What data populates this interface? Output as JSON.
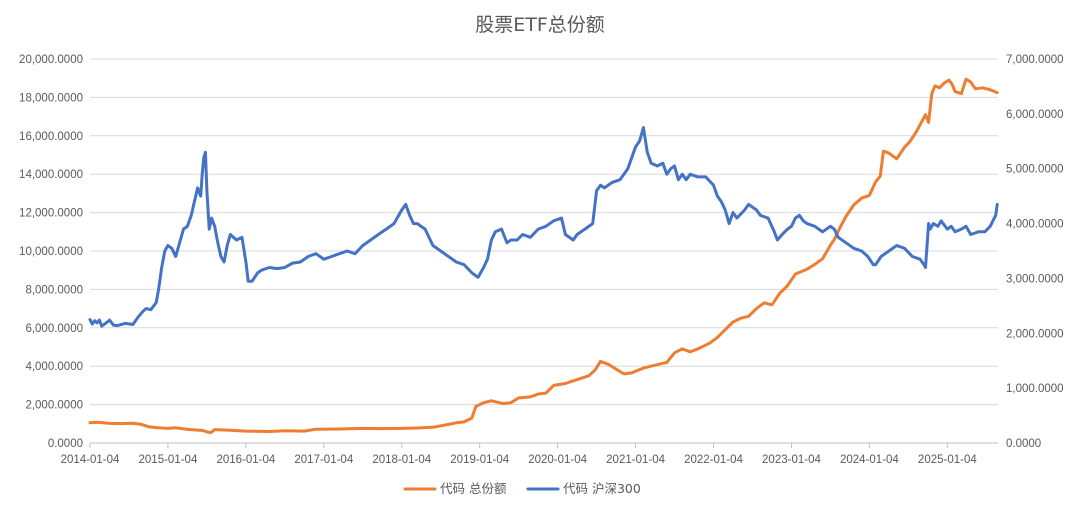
{
  "chart_data": {
    "type": "line",
    "title": "股票ETF总份额",
    "x_ticks": [
      "2014-01-04",
      "2015-01-04",
      "2016-01-04",
      "2017-01-04",
      "2018-01-04",
      "2019-01-04",
      "2020-01-04",
      "2021-01-04",
      "2022-01-04",
      "2023-01-04",
      "2024-01-04",
      "2025-01-04"
    ],
    "x_range": [
      2014.0,
      2025.65
    ],
    "y_left": {
      "ticks": [
        "0.0000",
        "2,000.0000",
        "4,000.0000",
        "6,000.0000",
        "8,000.0000",
        "10,000.0000",
        "12,000.0000",
        "14,000.0000",
        "16,000.0000",
        "18,000.0000",
        "20,000.0000"
      ],
      "range": [
        0,
        20000
      ]
    },
    "y_right": {
      "ticks": [
        "0.0000",
        "1,000.0000",
        "2,000.0000",
        "3,000.0000",
        "4,000.0000",
        "5,000.0000",
        "6,000.0000",
        "7,000.0000"
      ],
      "range": [
        0,
        7000
      ]
    },
    "grid": true,
    "legend_position": "bottom",
    "series": [
      {
        "name": "代码 总份额",
        "axis": "left",
        "color": "#ed7d31",
        "points": [
          [
            2014.0,
            1050
          ],
          [
            2014.1,
            1080
          ],
          [
            2014.25,
            1020
          ],
          [
            2014.4,
            1010
          ],
          [
            2014.55,
            1030
          ],
          [
            2014.65,
            980
          ],
          [
            2014.75,
            850
          ],
          [
            2014.85,
            800
          ],
          [
            2015.0,
            760
          ],
          [
            2015.1,
            790
          ],
          [
            2015.25,
            710
          ],
          [
            2015.45,
            650
          ],
          [
            2015.5,
            580
          ],
          [
            2015.55,
            540
          ],
          [
            2015.6,
            700
          ],
          [
            2015.8,
            660
          ],
          [
            2016.0,
            620
          ],
          [
            2016.3,
            600
          ],
          [
            2016.5,
            640
          ],
          [
            2016.75,
            620
          ],
          [
            2016.9,
            720
          ],
          [
            2017.2,
            730
          ],
          [
            2017.5,
            760
          ],
          [
            2017.75,
            750
          ],
          [
            2018.0,
            760
          ],
          [
            2018.2,
            780
          ],
          [
            2018.4,
            820
          ],
          [
            2018.55,
            930
          ],
          [
            2018.7,
            1050
          ],
          [
            2018.8,
            1100
          ],
          [
            2018.9,
            1300
          ],
          [
            2018.95,
            1900
          ],
          [
            2019.05,
            2100
          ],
          [
            2019.15,
            2200
          ],
          [
            2019.3,
            2050
          ],
          [
            2019.4,
            2100
          ],
          [
            2019.5,
            2350
          ],
          [
            2019.65,
            2400
          ],
          [
            2019.75,
            2550
          ],
          [
            2019.85,
            2600
          ],
          [
            2019.95,
            3000
          ],
          [
            2020.1,
            3100
          ],
          [
            2020.25,
            3300
          ],
          [
            2020.4,
            3500
          ],
          [
            2020.48,
            3800
          ],
          [
            2020.55,
            4250
          ],
          [
            2020.65,
            4100
          ],
          [
            2020.75,
            3850
          ],
          [
            2020.85,
            3600
          ],
          [
            2020.95,
            3650
          ],
          [
            2021.1,
            3900
          ],
          [
            2021.25,
            4050
          ],
          [
            2021.4,
            4200
          ],
          [
            2021.5,
            4700
          ],
          [
            2021.6,
            4900
          ],
          [
            2021.7,
            4750
          ],
          [
            2021.8,
            4900
          ],
          [
            2021.95,
            5200
          ],
          [
            2022.05,
            5500
          ],
          [
            2022.15,
            5900
          ],
          [
            2022.25,
            6300
          ],
          [
            2022.35,
            6500
          ],
          [
            2022.45,
            6600
          ],
          [
            2022.55,
            7000
          ],
          [
            2022.65,
            7300
          ],
          [
            2022.75,
            7200
          ],
          [
            2022.85,
            7800
          ],
          [
            2022.95,
            8200
          ],
          [
            2023.05,
            8800
          ],
          [
            2023.2,
            9050
          ],
          [
            2023.3,
            9300
          ],
          [
            2023.4,
            9600
          ],
          [
            2023.5,
            10300
          ],
          [
            2023.55,
            10600
          ],
          [
            2023.62,
            11200
          ],
          [
            2023.7,
            11800
          ],
          [
            2023.8,
            12400
          ],
          [
            2023.9,
            12750
          ],
          [
            2024.0,
            12900
          ],
          [
            2024.08,
            13600
          ],
          [
            2024.14,
            13900
          ],
          [
            2024.18,
            15200
          ],
          [
            2024.25,
            15100
          ],
          [
            2024.35,
            14800
          ],
          [
            2024.45,
            15400
          ],
          [
            2024.52,
            15700
          ],
          [
            2024.6,
            16200
          ],
          [
            2024.68,
            16800
          ],
          [
            2024.72,
            17100
          ],
          [
            2024.76,
            16700
          ],
          [
            2024.8,
            18200
          ],
          [
            2024.84,
            18600
          ],
          [
            2024.9,
            18500
          ],
          [
            2024.96,
            18750
          ],
          [
            2025.02,
            18900
          ],
          [
            2025.06,
            18700
          ],
          [
            2025.1,
            18300
          ],
          [
            2025.18,
            18200
          ],
          [
            2025.24,
            18950
          ],
          [
            2025.3,
            18800
          ],
          [
            2025.36,
            18450
          ],
          [
            2025.45,
            18500
          ],
          [
            2025.55,
            18400
          ],
          [
            2025.64,
            18250
          ]
        ]
      },
      {
        "name": "代码 沪深300",
        "axis": "right",
        "color": "#4472c4",
        "points": [
          [
            2014.0,
            2250
          ],
          [
            2014.03,
            2170
          ],
          [
            2014.06,
            2230
          ],
          [
            2014.09,
            2190
          ],
          [
            2014.12,
            2240
          ],
          [
            2014.15,
            2130
          ],
          [
            2014.2,
            2180
          ],
          [
            2014.25,
            2240
          ],
          [
            2014.3,
            2150
          ],
          [
            2014.35,
            2140
          ],
          [
            2014.45,
            2180
          ],
          [
            2014.55,
            2160
          ],
          [
            2014.62,
            2300
          ],
          [
            2014.68,
            2400
          ],
          [
            2014.72,
            2450
          ],
          [
            2014.78,
            2430
          ],
          [
            2014.85,
            2560
          ],
          [
            2014.88,
            2800
          ],
          [
            2014.92,
            3200
          ],
          [
            2014.96,
            3500
          ],
          [
            2015.0,
            3600
          ],
          [
            2015.05,
            3550
          ],
          [
            2015.1,
            3400
          ],
          [
            2015.15,
            3650
          ],
          [
            2015.2,
            3900
          ],
          [
            2015.25,
            3950
          ],
          [
            2015.3,
            4150
          ],
          [
            2015.34,
            4400
          ],
          [
            2015.38,
            4650
          ],
          [
            2015.42,
            4500
          ],
          [
            2015.44,
            4900
          ],
          [
            2015.46,
            5200
          ],
          [
            2015.48,
            5300
          ],
          [
            2015.5,
            4600
          ],
          [
            2015.53,
            3900
          ],
          [
            2015.56,
            4100
          ],
          [
            2015.6,
            3950
          ],
          [
            2015.64,
            3650
          ],
          [
            2015.68,
            3400
          ],
          [
            2015.72,
            3300
          ],
          [
            2015.76,
            3600
          ],
          [
            2015.8,
            3800
          ],
          [
            2015.88,
            3700
          ],
          [
            2015.95,
            3750
          ],
          [
            2016.0,
            3300
          ],
          [
            2016.03,
            2950
          ],
          [
            2016.08,
            2950
          ],
          [
            2016.15,
            3100
          ],
          [
            2016.2,
            3150
          ],
          [
            2016.3,
            3200
          ],
          [
            2016.4,
            3180
          ],
          [
            2016.5,
            3200
          ],
          [
            2016.6,
            3280
          ],
          [
            2016.7,
            3300
          ],
          [
            2016.8,
            3400
          ],
          [
            2016.9,
            3450
          ],
          [
            2017.0,
            3350
          ],
          [
            2017.1,
            3400
          ],
          [
            2017.2,
            3450
          ],
          [
            2017.3,
            3500
          ],
          [
            2017.4,
            3450
          ],
          [
            2017.5,
            3600
          ],
          [
            2017.6,
            3700
          ],
          [
            2017.7,
            3800
          ],
          [
            2017.8,
            3900
          ],
          [
            2017.9,
            4000
          ],
          [
            2018.0,
            4250
          ],
          [
            2018.05,
            4350
          ],
          [
            2018.1,
            4150
          ],
          [
            2018.15,
            4000
          ],
          [
            2018.2,
            4000
          ],
          [
            2018.3,
            3900
          ],
          [
            2018.4,
            3600
          ],
          [
            2018.5,
            3500
          ],
          [
            2018.6,
            3400
          ],
          [
            2018.7,
            3300
          ],
          [
            2018.8,
            3250
          ],
          [
            2018.9,
            3100
          ],
          [
            2018.98,
            3020
          ],
          [
            2019.05,
            3200
          ],
          [
            2019.1,
            3350
          ],
          [
            2019.15,
            3700
          ],
          [
            2019.2,
            3850
          ],
          [
            2019.28,
            3900
          ],
          [
            2019.35,
            3650
          ],
          [
            2019.4,
            3700
          ],
          [
            2019.48,
            3700
          ],
          [
            2019.55,
            3800
          ],
          [
            2019.65,
            3750
          ],
          [
            2019.75,
            3900
          ],
          [
            2019.85,
            3950
          ],
          [
            2019.95,
            4050
          ],
          [
            2020.05,
            4100
          ],
          [
            2020.1,
            3800
          ],
          [
            2020.2,
            3700
          ],
          [
            2020.25,
            3800
          ],
          [
            2020.35,
            3900
          ],
          [
            2020.45,
            4000
          ],
          [
            2020.5,
            4600
          ],
          [
            2020.55,
            4700
          ],
          [
            2020.6,
            4650
          ],
          [
            2020.7,
            4750
          ],
          [
            2020.8,
            4800
          ],
          [
            2020.9,
            5000
          ],
          [
            2021.0,
            5400
          ],
          [
            2021.05,
            5500
          ],
          [
            2021.1,
            5750
          ],
          [
            2021.15,
            5300
          ],
          [
            2021.2,
            5100
          ],
          [
            2021.28,
            5050
          ],
          [
            2021.35,
            5100
          ],
          [
            2021.4,
            4900
          ],
          [
            2021.45,
            5000
          ],
          [
            2021.5,
            5050
          ],
          [
            2021.55,
            4800
          ],
          [
            2021.6,
            4900
          ],
          [
            2021.65,
            4800
          ],
          [
            2021.7,
            4900
          ],
          [
            2021.8,
            4850
          ],
          [
            2021.9,
            4850
          ],
          [
            2022.0,
            4700
          ],
          [
            2022.05,
            4500
          ],
          [
            2022.1,
            4400
          ],
          [
            2022.15,
            4250
          ],
          [
            2022.2,
            4000
          ],
          [
            2022.25,
            4200
          ],
          [
            2022.3,
            4100
          ],
          [
            2022.4,
            4250
          ],
          [
            2022.45,
            4350
          ],
          [
            2022.5,
            4300
          ],
          [
            2022.55,
            4250
          ],
          [
            2022.6,
            4150
          ],
          [
            2022.7,
            4100
          ],
          [
            2022.78,
            3850
          ],
          [
            2022.82,
            3700
          ],
          [
            2022.88,
            3800
          ],
          [
            2022.95,
            3900
          ],
          [
            2023.0,
            3950
          ],
          [
            2023.05,
            4100
          ],
          [
            2023.1,
            4150
          ],
          [
            2023.15,
            4050
          ],
          [
            2023.2,
            4000
          ],
          [
            2023.3,
            3950
          ],
          [
            2023.35,
            3900
          ],
          [
            2023.4,
            3850
          ],
          [
            2023.5,
            3950
          ],
          [
            2023.55,
            3900
          ],
          [
            2023.6,
            3750
          ],
          [
            2023.7,
            3650
          ],
          [
            2023.8,
            3550
          ],
          [
            2023.9,
            3500
          ],
          [
            2023.98,
            3400
          ],
          [
            2024.05,
            3250
          ],
          [
            2024.08,
            3250
          ],
          [
            2024.15,
            3400
          ],
          [
            2024.25,
            3500
          ],
          [
            2024.35,
            3600
          ],
          [
            2024.45,
            3550
          ],
          [
            2024.55,
            3400
          ],
          [
            2024.65,
            3350
          ],
          [
            2024.7,
            3250
          ],
          [
            2024.72,
            3200
          ],
          [
            2024.76,
            4000
          ],
          [
            2024.78,
            3900
          ],
          [
            2024.82,
            4000
          ],
          [
            2024.88,
            3950
          ],
          [
            2024.92,
            4050
          ],
          [
            2025.0,
            3900
          ],
          [
            2025.05,
            3950
          ],
          [
            2025.1,
            3850
          ],
          [
            2025.18,
            3900
          ],
          [
            2025.24,
            3950
          ],
          [
            2025.3,
            3800
          ],
          [
            2025.4,
            3850
          ],
          [
            2025.48,
            3850
          ],
          [
            2025.55,
            3950
          ],
          [
            2025.62,
            4150
          ],
          [
            2025.64,
            4350
          ]
        ]
      }
    ]
  }
}
